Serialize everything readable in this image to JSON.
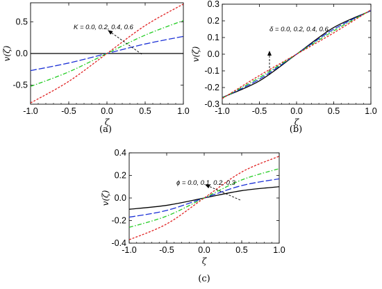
{
  "chart_data": [
    {
      "type": "line",
      "panel": "(a)",
      "xlabel": "ζ",
      "ylabel": "v(ζ)",
      "xlim": [
        -1.0,
        1.0
      ],
      "ylim": [
        -0.8,
        0.8
      ],
      "xticks": [
        "-1.0",
        "-0.5",
        "0.0",
        "0.5",
        "1.0"
      ],
      "xtick_values": [
        -1.0,
        -0.5,
        0.0,
        0.5,
        1.0
      ],
      "yticks": [
        "-0.5",
        "0.0",
        "0.5"
      ],
      "ytick_values": [
        -0.5,
        0.0,
        0.5
      ],
      "annotation": "K = 0.0, 0.2, 0.4, 0.6",
      "x": [
        -1.0,
        -0.5,
        0.0,
        0.5,
        1.0
      ],
      "series": [
        {
          "color": "#000000",
          "dash": "solid",
          "values": [
            0.0,
            0.0,
            0.0,
            0.0,
            0.0
          ]
        },
        {
          "color": "#1a2fd6",
          "dash": "longdash",
          "values": [
            -0.27,
            -0.15,
            0.0,
            0.15,
            0.27
          ]
        },
        {
          "color": "#22cc22",
          "dash": "dashdot",
          "values": [
            -0.52,
            -0.29,
            0.0,
            0.29,
            0.52
          ]
        },
        {
          "color": "#e02020",
          "dash": "shortdash",
          "values": [
            -0.78,
            -0.44,
            0.0,
            0.44,
            0.78
          ]
        }
      ]
    },
    {
      "type": "line",
      "panel": "(b)",
      "xlabel": "ζ",
      "ylabel": "v(ζ)",
      "xlim": [
        -1.0,
        1.0
      ],
      "ylim": [
        -0.3,
        0.3
      ],
      "xticks": [
        "-1.0",
        "-0.5",
        "0.0",
        "0.5",
        "1.0"
      ],
      "xtick_values": [
        -1.0,
        -0.5,
        0.0,
        0.5,
        1.0
      ],
      "yticks": [
        "-0.3",
        "-0.2",
        "-0.1",
        "0.0",
        "0.1",
        "0.2",
        "0.3"
      ],
      "ytick_values": [
        -0.3,
        -0.2,
        -0.1,
        0.0,
        0.1,
        0.2,
        0.3
      ],
      "annotation": "δ = 0.0, 0.2, 0.4, 0.6",
      "x": [
        -1.0,
        -0.5,
        0.0,
        0.5,
        1.0
      ],
      "series": [
        {
          "color": "#000000",
          "dash": "solid",
          "values": [
            -0.26,
            -0.16,
            0.0,
            0.16,
            0.26
          ]
        },
        {
          "color": "#1a2fd6",
          "dash": "longdash",
          "values": [
            -0.262,
            -0.15,
            0.0,
            0.15,
            0.262
          ]
        },
        {
          "color": "#22cc22",
          "dash": "dashdot",
          "values": [
            -0.264,
            -0.14,
            0.0,
            0.14,
            0.264
          ]
        },
        {
          "color": "#e02020",
          "dash": "shortdash",
          "values": [
            -0.266,
            -0.128,
            0.0,
            0.128,
            0.266
          ]
        }
      ]
    },
    {
      "type": "line",
      "panel": "(c)",
      "xlabel": "ζ",
      "ylabel": "v(ζ)",
      "xlim": [
        -1.0,
        1.0
      ],
      "ylim": [
        -0.4,
        0.4
      ],
      "xticks": [
        "-1.0",
        "-0.5",
        "0.0",
        "0.5",
        "1.0"
      ],
      "xtick_values": [
        -1.0,
        -0.5,
        0.0,
        0.5,
        1.0
      ],
      "yticks": [
        "-0.4",
        "-0.2",
        "0.0",
        "0.2",
        "0.4"
      ],
      "ytick_values": [
        -0.4,
        -0.2,
        0.0,
        0.2,
        0.4
      ],
      "annotation": "ϕ = 0.0, 0.1, 0.2, 0.3",
      "x": [
        -1.0,
        -0.5,
        0.0,
        0.5,
        1.0
      ],
      "series": [
        {
          "color": "#000000",
          "dash": "solid",
          "values": [
            -0.1,
            -0.065,
            0.0,
            0.065,
            0.1
          ]
        },
        {
          "color": "#1a2fd6",
          "dash": "longdash",
          "values": [
            -0.17,
            -0.11,
            0.0,
            0.11,
            0.17
          ]
        },
        {
          "color": "#22cc22",
          "dash": "dashdot",
          "values": [
            -0.26,
            -0.16,
            0.0,
            0.16,
            0.26
          ]
        },
        {
          "color": "#e02020",
          "dash": "shortdash",
          "values": [
            -0.37,
            -0.23,
            0.0,
            0.23,
            0.37
          ]
        }
      ]
    }
  ]
}
